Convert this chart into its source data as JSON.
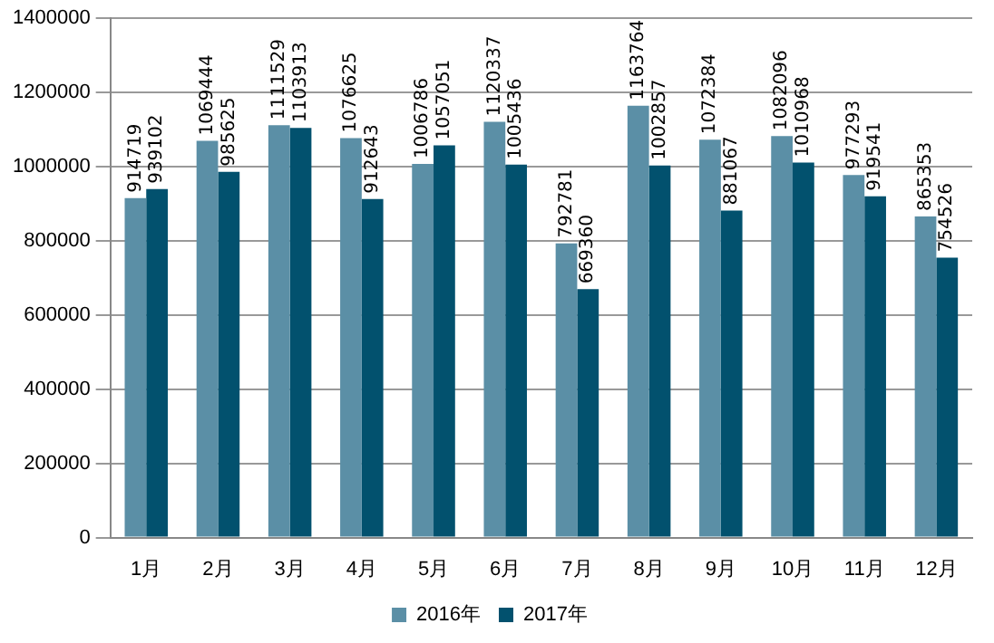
{
  "chart_data": {
    "type": "bar",
    "categories": [
      "1月",
      "2月",
      "3月",
      "4月",
      "5月",
      "6月",
      "7月",
      "8月",
      "9月",
      "10月",
      "11月",
      "12月"
    ],
    "series": [
      {
        "name": "2016年",
        "color": "#5b8fa6",
        "values": [
          914719,
          1069444,
          1111529,
          1076625,
          1006786,
          1120337,
          792781,
          1163764,
          1072384,
          1082096,
          977293,
          865353
        ]
      },
      {
        "name": "2017年",
        "color": "#02516e",
        "values": [
          939102,
          985625,
          1103913,
          912643,
          1057051,
          1005436,
          669360,
          1002857,
          881067,
          1010968,
          919541,
          754526
        ]
      }
    ],
    "ylim": [
      0,
      1400000
    ],
    "yticks": [
      0,
      200000,
      400000,
      600000,
      800000,
      1000000,
      1200000,
      1400000
    ],
    "grid": "y",
    "legend": "bottom",
    "data_labels": true
  }
}
